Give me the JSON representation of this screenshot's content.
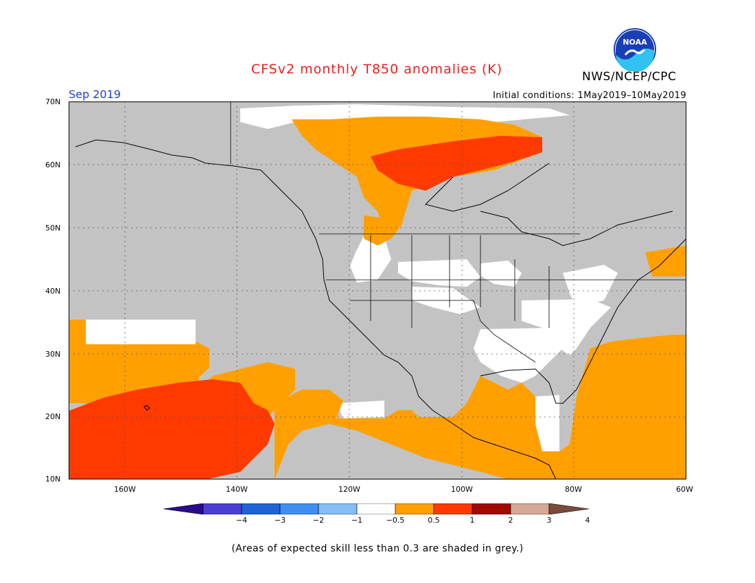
{
  "title": "CFSv2 monthly T850 anomalies (K)",
  "org": "NWS/NCEP/CPC",
  "logo_text": "NOAA",
  "month": "Sep 2019",
  "initial_conditions": "Initial conditions: 1May2019–10May2019",
  "footnote": "(Areas of expected skill less than 0.3 are shaded in grey.)",
  "colors": {
    "title": "#e8201e",
    "month": "#1f3fd2",
    "grey": "#c3c3c3",
    "white": "#ffffff",
    "orange": "#ffa000",
    "red_orange": "#ff3a00"
  },
  "lat_labels": [
    "70N",
    "60N",
    "50N",
    "40N",
    "30N",
    "20N",
    "10N"
  ],
  "lon_labels": [
    "160W",
    "140W",
    "120W",
    "100W",
    "80W",
    "60W"
  ],
  "colorbar": {
    "labels": [
      "−4",
      "−3",
      "−2",
      "−1",
      "−0.5",
      "0.5",
      "1",
      "2",
      "3",
      "4"
    ],
    "colors": [
      "#2a0a8c",
      "#4a3fd0",
      "#1f63d4",
      "#3f8ff0",
      "#85bdf5",
      "#ffffff",
      "#ffa000",
      "#ff3a00",
      "#a00a00",
      "#d4a896",
      "#7a4a3a"
    ]
  }
}
